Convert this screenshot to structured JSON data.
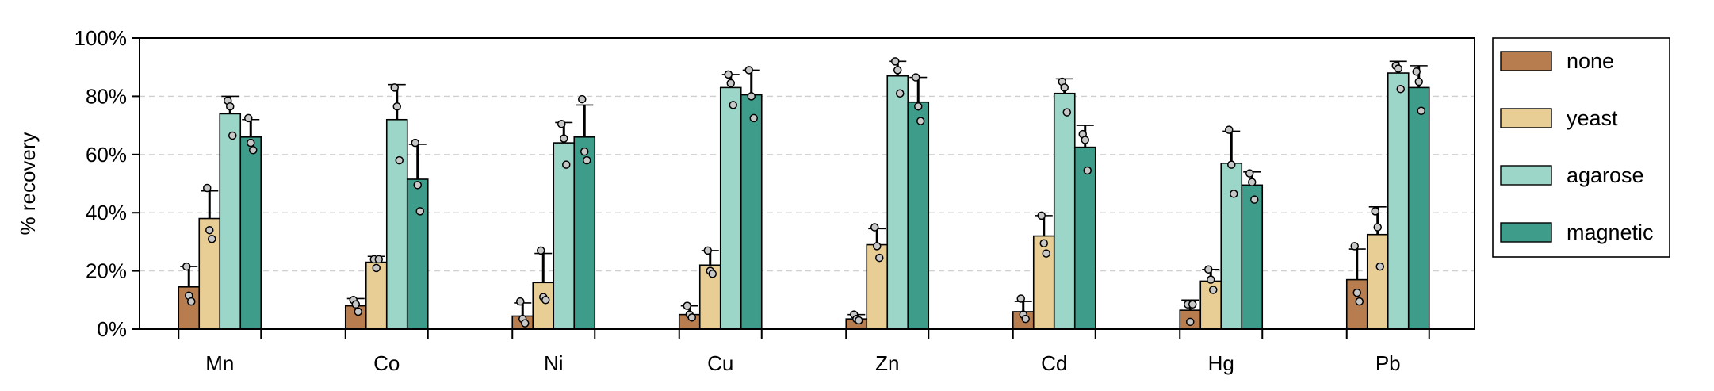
{
  "chart_data": {
    "type": "bar",
    "ylabel": "% recovery",
    "xlabel": "",
    "ylim": [
      0,
      100
    ],
    "yticks": [
      "0%",
      "20%",
      "40%",
      "60%",
      "80%",
      "100%"
    ],
    "grid": "horizontal dashed",
    "legend_position": "right",
    "categories": [
      "Mn",
      "Co",
      "Ni",
      "Cu",
      "Zn",
      "Cd",
      "Hg",
      "Pb"
    ],
    "series": [
      {
        "name": "none",
        "color": "#b87d4f",
        "values": [
          14.5,
          8.0,
          4.5,
          5.0,
          3.5,
          6.0,
          6.5,
          17.0
        ],
        "errors": [
          7.0,
          2.5,
          4.5,
          3.0,
          1.5,
          3.5,
          3.5,
          10.5
        ],
        "points": [
          [
            21.5,
            11.5,
            9.5
          ],
          [
            10.0,
            8.5,
            6.0
          ],
          [
            9.5,
            3.5,
            2.0
          ],
          [
            8.0,
            5.0,
            4.0
          ],
          [
            5.0,
            3.5,
            3.0
          ],
          [
            10.5,
            5.0,
            3.5
          ],
          [
            8.5,
            2.5,
            8.5
          ],
          [
            28.5,
            12.5,
            9.5
          ]
        ]
      },
      {
        "name": "yeast",
        "color": "#e8cd94",
        "values": [
          38.0,
          23.0,
          16.0,
          22.0,
          29.0,
          32.0,
          16.5,
          32.5
        ],
        "errors": [
          9.5,
          2.0,
          10.0,
          5.0,
          5.5,
          7.0,
          4.0,
          9.5
        ],
        "points": [
          [
            48.5,
            34.0,
            31.0
          ],
          [
            24.0,
            21.0,
            24.0
          ],
          [
            27.0,
            11.0,
            10.0
          ],
          [
            27.0,
            20.0,
            19.0
          ],
          [
            35.0,
            28.5,
            24.5
          ],
          [
            39.0,
            29.5,
            26.0
          ],
          [
            20.5,
            17.0,
            13.5
          ],
          [
            40.5,
            35.0,
            21.5
          ]
        ]
      },
      {
        "name": "agarose",
        "color": "#9bd6c9",
        "values": [
          74.0,
          72.0,
          64.0,
          83.0,
          87.0,
          81.0,
          57.0,
          88.0
        ],
        "errors": [
          6.0,
          12.0,
          7.0,
          4.5,
          5.0,
          5.0,
          11.0,
          4.0
        ],
        "points": [
          [
            78.5,
            76.5,
            66.5
          ],
          [
            83.0,
            76.5,
            58.0
          ],
          [
            70.5,
            65.5,
            56.5
          ],
          [
            87.5,
            84.5,
            77.0
          ],
          [
            92.0,
            89.0,
            81.0
          ],
          [
            85.0,
            83.0,
            74.5
          ],
          [
            68.5,
            56.5,
            46.5
          ],
          [
            90.5,
            89.5,
            82.5
          ]
        ]
      },
      {
        "name": "magnetic",
        "color": "#3d9d8a",
        "values": [
          66.0,
          51.5,
          66.0,
          80.5,
          78.0,
          62.5,
          49.5,
          83.0
        ],
        "errors": [
          6.0,
          12.0,
          11.0,
          8.5,
          8.5,
          7.5,
          4.5,
          7.5
        ],
        "points": [
          [
            72.5,
            64.0,
            61.5
          ],
          [
            64.0,
            49.5,
            40.5
          ],
          [
            79.0,
            61.0,
            58.0
          ],
          [
            89.0,
            80.0,
            72.5
          ],
          [
            86.5,
            76.5,
            71.5
          ],
          [
            67.0,
            65.0,
            54.5
          ],
          [
            53.5,
            50.5,
            44.5
          ],
          [
            88.5,
            85.0,
            75.0
          ]
        ]
      }
    ]
  }
}
